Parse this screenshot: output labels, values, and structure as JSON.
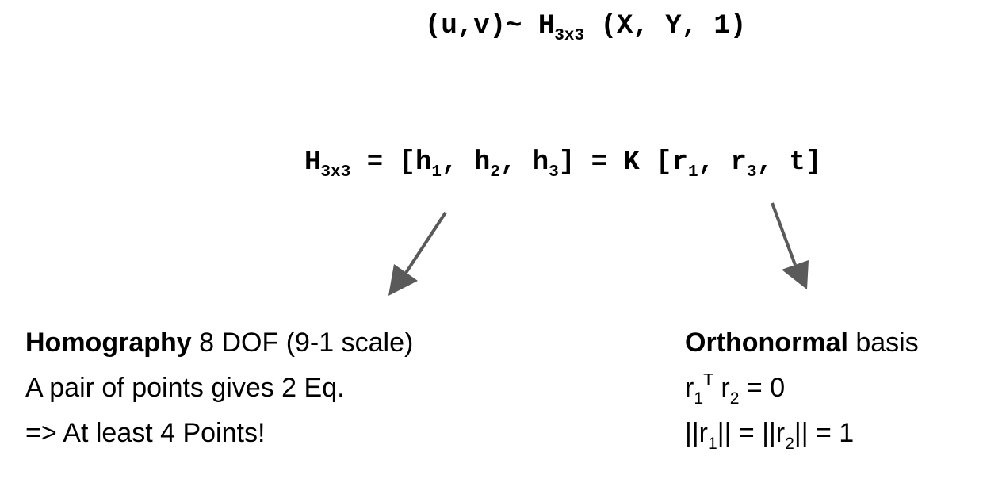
{
  "equation_1": {
    "lhs": "(u,v)~ H",
    "lhs_sub": "3x3",
    "rhs": " (X, Y, 1)"
  },
  "equation_2": {
    "h": "H",
    "h_sub": "3x3",
    "p1": " = [h",
    "s1": "1",
    "p2": ", h",
    "s2": "2",
    "p3": ", h",
    "s3": "3",
    "p4": "] = K [r",
    "s4": "1",
    "p5": ", r",
    "s5": "3",
    "p6": ", t]"
  },
  "left_notes": {
    "bold_word": "Homography",
    "line1_rest": " 8 DOF (9-1 scale)",
    "line2": "A pair of points gives 2 Eq.",
    "line3": "=> At least 4 Points!"
  },
  "right_notes": {
    "bold_word": "Orthonormal",
    "line1_rest": " basis",
    "line2": {
      "a": "r",
      "a_sub": "1",
      "a_sup": "T",
      "b": " r",
      "b_sub": "2",
      "c": " = 0"
    },
    "line3": {
      "a": "||r",
      "a_sub": "1",
      "b": "|| = ||r",
      "b_sub": "2",
      "c": "|| = 1"
    }
  },
  "colors": {
    "arrow": "#5a5a5a",
    "text": "#000000"
  }
}
